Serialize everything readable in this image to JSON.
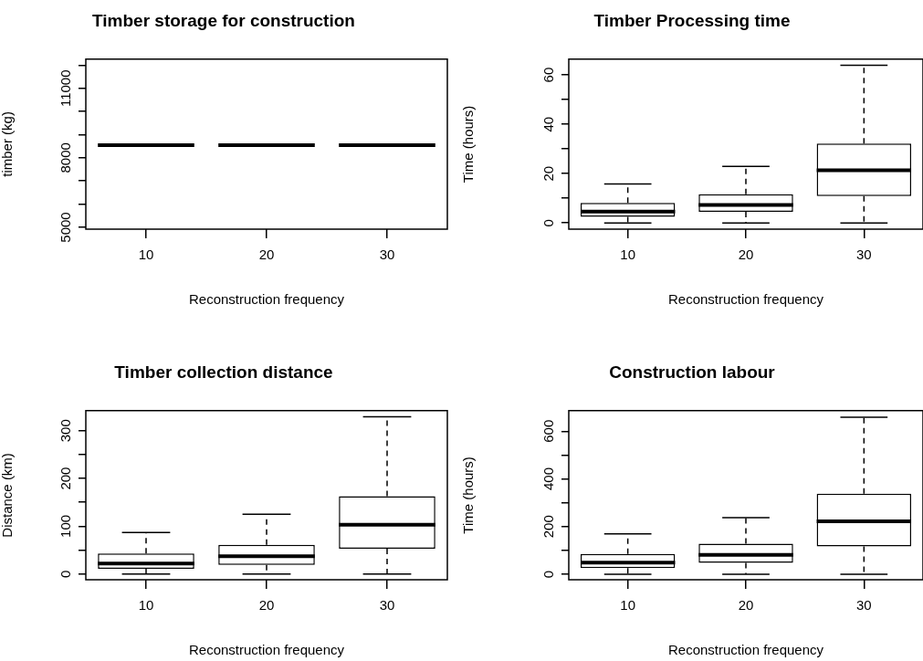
{
  "chart_data": [
    {
      "type": "box",
      "title": "Timber storage for construction",
      "xlabel": "Reconstruction frequency",
      "ylabel": "timber (kg)",
      "categories": [
        "10",
        "20",
        "30"
      ],
      "boxes": [
        {
          "low": 8550,
          "q1": 8550,
          "median": 8550,
          "q3": 8550,
          "high": 8550
        },
        {
          "low": 8550,
          "q1": 8550,
          "median": 8550,
          "q3": 8550,
          "high": 8550
        },
        {
          "low": 8550,
          "q1": 8550,
          "median": 8550,
          "q3": 8550,
          "high": 8550
        }
      ],
      "ylim": [
        4920,
        12260
      ],
      "yticks": [
        5000,
        {
          "value": 6000,
          "label": null
        },
        {
          "value": 7000,
          "label": null
        },
        8000,
        {
          "value": 9000,
          "label": null
        },
        {
          "value": 10000,
          "label": null
        },
        11000,
        {
          "value": 12000,
          "label": null
        }
      ]
    },
    {
      "type": "box",
      "title": "Timber Processing time",
      "xlabel": "Reconstruction frequency",
      "ylabel": "Time (hours)",
      "categories": [
        "10",
        "20",
        "30"
      ],
      "boxes": [
        {
          "low": 0,
          "q1": 2.5,
          "median": 4.6,
          "q3": 8.1,
          "high": 15.8
        },
        {
          "low": 0,
          "q1": 4.5,
          "median": 7.3,
          "q3": 11.7,
          "high": 22.9
        },
        {
          "low": 0,
          "q1": 10.9,
          "median": 21.4,
          "q3": 32.2,
          "high": 63.9
        }
      ],
      "ylim": [
        -2.5,
        66.4
      ],
      "yticks": [
        0,
        {
          "value": 10,
          "label": null
        },
        20,
        {
          "value": 30,
          "label": null
        },
        40,
        {
          "value": 50,
          "label": null
        },
        60
      ]
    },
    {
      "type": "box",
      "title": "Timber collection distance",
      "xlabel": "Reconstruction frequency",
      "ylabel": "Distance (km)",
      "categories": [
        "10",
        "20",
        "30"
      ],
      "boxes": [
        {
          "low": 0,
          "q1": 11,
          "median": 22,
          "q3": 43,
          "high": 87
        },
        {
          "low": 0,
          "q1": 19,
          "median": 37,
          "q3": 61,
          "high": 125
        },
        {
          "low": 0,
          "q1": 53,
          "median": 103,
          "q3": 163,
          "high": 329
        }
      ],
      "ylim": [
        -12,
        342
      ],
      "yticks": [
        0,
        {
          "value": 50,
          "label": null
        },
        100,
        {
          "value": 150,
          "label": null
        },
        200,
        {
          "value": 250,
          "label": null
        },
        300
      ]
    },
    {
      "type": "box",
      "title": "Construction labour",
      "xlabel": "Reconstruction frequency",
      "ylabel": "Time (hours)",
      "categories": [
        "10",
        "20",
        "30"
      ],
      "boxes": [
        {
          "low": 0,
          "q1": 26,
          "median": 49,
          "q3": 85,
          "high": 169
        },
        {
          "low": 0,
          "q1": 48,
          "median": 81,
          "q3": 128,
          "high": 237
        },
        {
          "low": 0,
          "q1": 117,
          "median": 222,
          "q3": 338,
          "high": 658
        }
      ],
      "ylim": [
        -23,
        686
      ],
      "yticks": [
        0,
        {
          "value": 100,
          "label": null
        },
        200,
        {
          "value": 300,
          "label": null
        },
        400,
        {
          "value": 500,
          "label": null
        },
        600
      ]
    }
  ]
}
